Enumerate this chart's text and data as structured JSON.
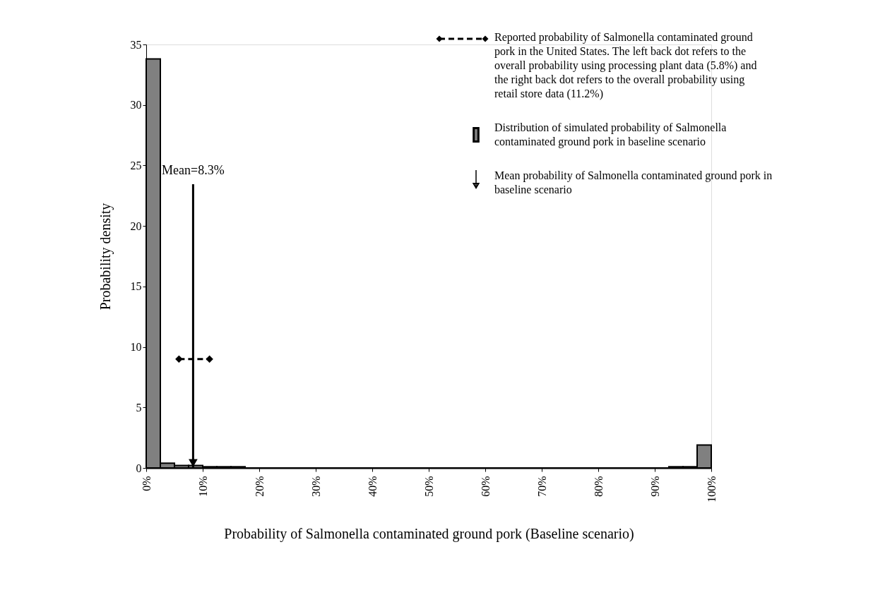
{
  "chart_data": {
    "type": "histogram",
    "xlabel": "Probability of Salmonella contaminated ground pork (Baseline scenario)",
    "ylabel": "Probability density",
    "bins": [
      0,
      2.5,
      5,
      7.5,
      10,
      12.5,
      15,
      17.5,
      20,
      22.5,
      25,
      27.5,
      30,
      32.5,
      35,
      37.5,
      40,
      42.5,
      45,
      47.5,
      50,
      52.5,
      55,
      57.5,
      60,
      62.5,
      65,
      67.5,
      70,
      72.5,
      75,
      77.5,
      80,
      82.5,
      85,
      87.5,
      90,
      92.5,
      95,
      97.5,
      100
    ],
    "xlim": [
      0,
      100
    ],
    "ylim": [
      0,
      35
    ],
    "xticks": [
      {
        "value": 0,
        "label": "0%"
      },
      {
        "value": 10,
        "label": "10%"
      },
      {
        "value": 20,
        "label": "20%"
      },
      {
        "value": 30,
        "label": "30%"
      },
      {
        "value": 40,
        "label": "40%"
      },
      {
        "value": 50,
        "label": "50%"
      },
      {
        "value": 60,
        "label": "60%"
      },
      {
        "value": 70,
        "label": "70%"
      },
      {
        "value": 80,
        "label": "80%"
      },
      {
        "value": 90,
        "label": "90%"
      },
      {
        "value": 100,
        "label": "100%"
      }
    ],
    "yticks": [
      0,
      5,
      10,
      15,
      20,
      25,
      30,
      35
    ],
    "grid": false,
    "legend": "top right",
    "series": [
      {
        "type": "line",
        "name": "Reported probability of Salmonella contaminated ground pork in the United States. The left back dot refers to the overall probability using processing plant data (5.8%) and the right back dot refers to the overall probability using retail store data (11.2%)",
        "x": [
          5.8,
          11.2
        ],
        "values": [
          9,
          9
        ],
        "color": "#000000",
        "marker": "diamond",
        "line_style": "dashed"
      },
      {
        "name": "Distribution of simulated probability of Salmonella contaminated ground pork in baseline scenario",
        "color": "#808080",
        "values": [
          33.8,
          0.4,
          0.2,
          0.2,
          0.1,
          0.1,
          0.1,
          0,
          0,
          0,
          0,
          0,
          0,
          0,
          0,
          0,
          0,
          0,
          0,
          0,
          0,
          0,
          0,
          0,
          0,
          0,
          0,
          0,
          0,
          0,
          0,
          0,
          0,
          0,
          0,
          0,
          0,
          0.1,
          0.1,
          1.9
        ]
      }
    ],
    "ref_lines": [
      {
        "axis": "x",
        "value": 8.3,
        "label": "Mean=8.3%",
        "color": "#000000",
        "line_style": "solid"
      }
    ],
    "annotations": [
      "Mean probability of Salmonella contaminated ground pork in baseline scenario"
    ]
  }
}
